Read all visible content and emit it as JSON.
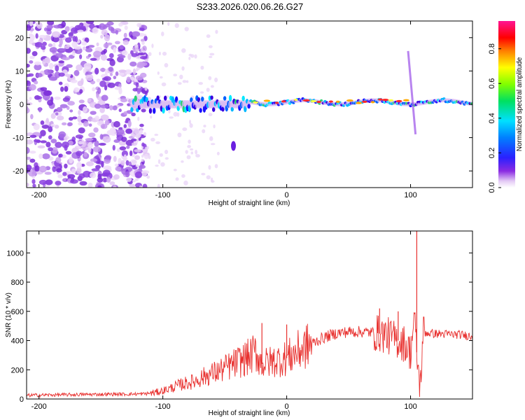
{
  "title": "S233.2026.020.06.26.G27",
  "chart_data": [
    {
      "type": "heatmap",
      "xlabel": "Height of straight line (km)",
      "ylabel": "Frequency (Hz)",
      "xlim": [
        -210,
        150
      ],
      "ylim": [
        -25,
        25
      ],
      "xticks": [
        -200,
        -100,
        0,
        100
      ],
      "yticks": [
        -20,
        -10,
        0,
        10,
        20
      ],
      "colorbar": {
        "label": "Normalized spectral amplitude",
        "range": [
          0,
          0.96
        ],
        "ticks": [
          0.0,
          0.2,
          0.4,
          0.6,
          0.8
        ],
        "tick_labels": [
          "0.0",
          "0.2",
          "0.4",
          "0.6",
          "0.8"
        ],
        "colormap": "rainbow (violet → blue → cyan → green → yellow → red → magenta)"
      },
      "features": {
        "noise_region_x": [
          -210,
          -125
        ],
        "signal_band_x": [
          -125,
          150
        ],
        "signal_frequency_hz": [
          0,
          2
        ],
        "peak_amplitude_x": [
          -25,
          100
        ],
        "spur_near_x": 100,
        "blob_at": {
          "x": -43,
          "y_range": [
            -14,
            -11
          ]
        }
      }
    },
    {
      "type": "line",
      "xlabel": "Height of straight line (km)",
      "ylabel": "SNR (10 * v/v)",
      "xlim": [
        -210,
        150
      ],
      "ylim": [
        0,
        1150
      ],
      "xticks": [
        -200,
        -100,
        0,
        100
      ],
      "yticks": [
        0,
        200,
        400,
        600,
        800,
        1000
      ],
      "color": "#e8302e",
      "x": [
        -210,
        -190,
        -170,
        -150,
        -130,
        -115,
        -105,
        -95,
        -85,
        -75,
        -65,
        -55,
        -45,
        -35,
        -30,
        -25,
        -20,
        -10,
        0,
        10,
        20,
        30,
        40,
        50,
        60,
        70,
        80,
        90,
        95,
        100,
        103,
        106,
        108,
        110,
        115,
        125,
        140,
        150
      ],
      "y": [
        25,
        28,
        30,
        32,
        33,
        35,
        45,
        70,
        100,
        120,
        160,
        190,
        230,
        270,
        290,
        320,
        240,
        260,
        280,
        330,
        380,
        420,
        450,
        460,
        460,
        455,
        440,
        400,
        380,
        320,
        560,
        200,
        80,
        460,
        450,
        445,
        440,
        430
      ],
      "spikes": [
        {
          "x": -20,
          "y": 520
        },
        {
          "x": 0,
          "y": 510
        },
        {
          "x": 75,
          "y": 620
        },
        {
          "x": 90,
          "y": 600
        },
        {
          "x": 105,
          "y": 1150
        }
      ]
    }
  ]
}
